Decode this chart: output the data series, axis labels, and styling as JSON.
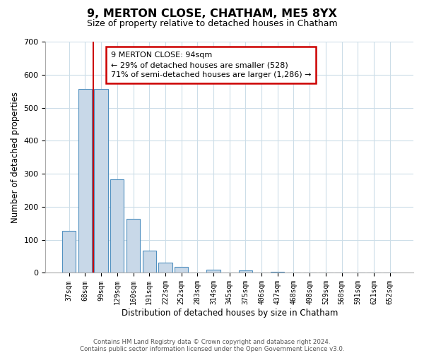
{
  "title": "9, MERTON CLOSE, CHATHAM, ME5 8YX",
  "subtitle": "Size of property relative to detached houses in Chatham",
  "xlabel": "Distribution of detached houses by size in Chatham",
  "ylabel": "Number of detached properties",
  "bin_labels": [
    "37sqm",
    "68sqm",
    "99sqm",
    "129sqm",
    "160sqm",
    "191sqm",
    "222sqm",
    "252sqm",
    "283sqm",
    "314sqm",
    "345sqm",
    "375sqm",
    "406sqm",
    "437sqm",
    "468sqm",
    "498sqm",
    "529sqm",
    "560sqm",
    "591sqm",
    "621sqm",
    "652sqm"
  ],
  "bar_values": [
    128,
    556,
    556,
    284,
    163,
    68,
    32,
    19,
    0,
    10,
    0,
    7,
    0,
    4,
    0,
    0,
    0,
    0,
    0,
    0,
    0
  ],
  "bar_color": "#c8d8e8",
  "bar_edge_color": "#5090c0",
  "property_line_x": 1.5,
  "property_line_color": "#cc0000",
  "ylim": [
    0,
    700
  ],
  "yticks": [
    0,
    100,
    200,
    300,
    400,
    500,
    600,
    700
  ],
  "annotation_box_text": "9 MERTON CLOSE: 94sqm\n← 29% of detached houses are smaller (528)\n71% of semi-detached houses are larger (1,286) →",
  "footer_text1": "Contains HM Land Registry data © Crown copyright and database right 2024.",
  "footer_text2": "Contains public sector information licensed under the Open Government Licence v3.0.",
  "background_color": "#ffffff",
  "grid_color": "#ccdde8"
}
